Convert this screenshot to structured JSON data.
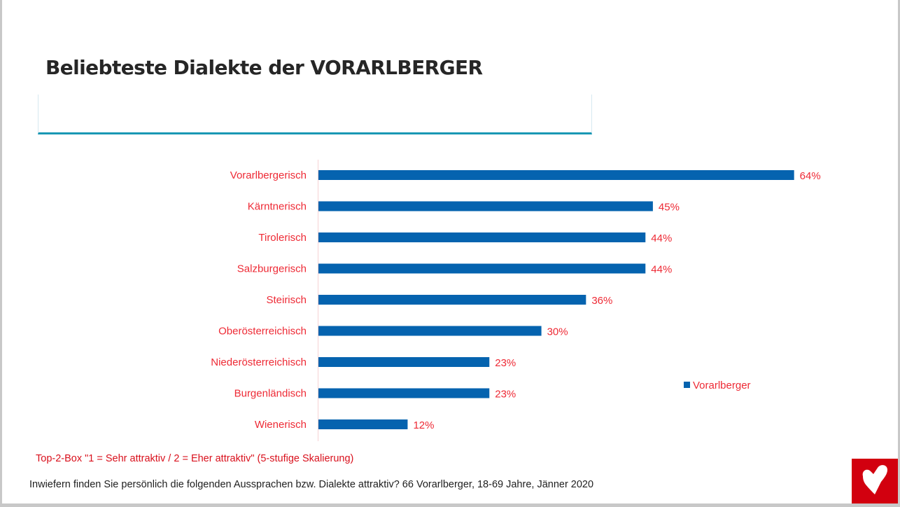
{
  "title": "Beliebteste Dialekte der VORARLBERGER",
  "chart_data": {
    "type": "bar",
    "orientation": "horizontal",
    "title": "Beliebteste Dialekte der VORARLBERGER",
    "categories": [
      "Vorarlbergerisch",
      "Kärntnerisch",
      "Tirolerisch",
      "Salzburgerisch",
      "Steirisch",
      "Oberösterreichisch",
      "Niederösterreichisch",
      "Burgenländisch",
      "Wienerisch"
    ],
    "series": [
      {
        "name": "Vorarlberger",
        "values": [
          64,
          45,
          44,
          44,
          36,
          30,
          23,
          23,
          12
        ],
        "labels": [
          "64%",
          "45%",
          "44%",
          "44%",
          "36%",
          "30%",
          "23%",
          "23%",
          "12%"
        ],
        "color": "#0563af"
      }
    ],
    "xlabel": "",
    "ylabel": "",
    "xlim": [
      0,
      64
    ],
    "unit": "%",
    "grid": false,
    "legend": "right"
  },
  "legend": {
    "label": "Vorarlberger"
  },
  "footnotes": {
    "scale_note": "Top-2-Box \"1 = Sehr attraktiv / 2 = Eher attraktiv\" (5-stufige Skalierung)",
    "question": "Inwiefern finden Sie persönlich die folgenden Aussprachen bzw. Dialekte attraktiv? 66 Vorarlberger, 18-69 Jahre, Jänner 2020"
  },
  "colors": {
    "bar": "#0563af",
    "label": "#ee2a35",
    "accent_line": "#1a98b4",
    "logo_bg": "#d2000f"
  },
  "logo": {
    "icon": "heart-icon"
  }
}
